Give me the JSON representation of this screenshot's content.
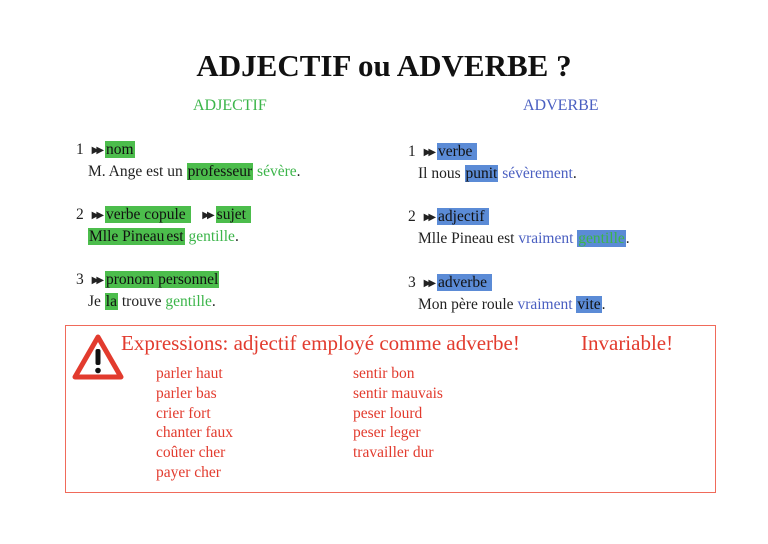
{
  "title": "ADJECTIF ou ADVERBE ?",
  "colors": {
    "adjectif": "#3cb54a",
    "adverbe": "#4a5fc1",
    "highlight_green": "#4cbd4c",
    "highlight_blue": "#5b8bd6",
    "warning": "#e23b2e"
  },
  "adjectif": {
    "heading": "ADJECTIF",
    "items": [
      {
        "label": [
          {
            "t": "1 "
          },
          {
            "t": "arrow"
          },
          {
            "t": "nom",
            "hl": "green"
          }
        ],
        "sentence": [
          {
            "t": "M. Ange est un "
          },
          {
            "t": "professeur",
            "hl": "green"
          },
          {
            "t": " "
          },
          {
            "t": "sévère",
            "c": "adjectif"
          },
          {
            "t": "."
          }
        ]
      },
      {
        "label": [
          {
            "t": "2 "
          },
          {
            "t": "arrow"
          },
          {
            "t": "verbe copule ",
            "hl": "green"
          },
          {
            "t": "  "
          },
          {
            "t": "arrow"
          },
          {
            "t": "sujet ",
            "hl": "green"
          }
        ],
        "sentence": [
          {
            "t": "Mlle Pineau",
            "hl": "green"
          },
          {
            "t": "est",
            "hl": "green"
          },
          {
            "t": " "
          },
          {
            "t": "gentille",
            "c": "adjectif"
          },
          {
            "t": "."
          }
        ]
      },
      {
        "label": [
          {
            "t": "3 "
          },
          {
            "t": "arrow"
          },
          {
            "t": "pronom personnel",
            "hl": "green"
          }
        ],
        "sentence": [
          {
            "t": "Je "
          },
          {
            "t": "la",
            "hl": "green"
          },
          {
            "t": " trouve "
          },
          {
            "t": "gentille",
            "c": "adjectif"
          },
          {
            "t": "."
          }
        ]
      }
    ]
  },
  "adverbe": {
    "heading": "ADVERBE",
    "items": [
      {
        "label": [
          {
            "t": "1 "
          },
          {
            "t": "arrow"
          },
          {
            "t": "verbe ",
            "hl": "blue"
          }
        ],
        "sentence": [
          {
            "t": "Il nous "
          },
          {
            "t": "punit",
            "hl": "blue"
          },
          {
            "t": " "
          },
          {
            "t": "sévèrement",
            "c": "adverbe"
          },
          {
            "t": "."
          }
        ]
      },
      {
        "label": [
          {
            "t": "2 "
          },
          {
            "t": "arrow"
          },
          {
            "t": "adjectif ",
            "hl": "blue"
          }
        ],
        "sentence": [
          {
            "t": "Mlle Pineau est "
          },
          {
            "t": "vraiment",
            "c": "adverbe"
          },
          {
            "t": " "
          },
          {
            "t": "gentille",
            "hl": "blue",
            "c": "adjectif"
          },
          {
            "t": "."
          }
        ]
      },
      {
        "label": [
          {
            "t": "3 "
          },
          {
            "t": "arrow"
          },
          {
            "t": "adverbe ",
            "hl": "blue"
          }
        ],
        "sentence": [
          {
            "t": "Mon père roule "
          },
          {
            "t": "vraiment",
            "c": "adverbe"
          },
          {
            "t": " "
          },
          {
            "t": "vite",
            "hl": "blue"
          },
          {
            "t": "."
          }
        ]
      }
    ]
  },
  "warning": {
    "icon": "warning-triangle-icon",
    "heading": "Expressions: adjectif employé comme adverbe!",
    "note": "Invariable!",
    "col1": [
      "parler haut",
      "parler bas",
      "crier fort",
      "chanter faux",
      "coûter cher",
      "payer cher"
    ],
    "col2": [
      "sentir bon",
      "sentir mauvais",
      "peser lourd",
      "peser leger",
      "travailler dur"
    ]
  }
}
